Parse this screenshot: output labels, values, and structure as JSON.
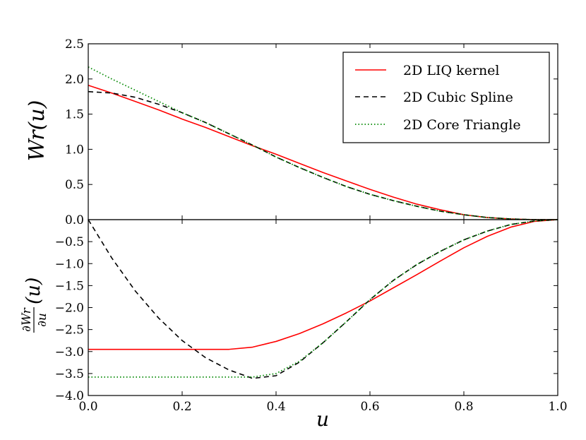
{
  "chart_data": [
    {
      "type": "line",
      "panel": "top",
      "title": "",
      "xlabel": "",
      "ylabel": "W_r(u)",
      "ylabel_display": "Wr(u)",
      "xlim": [
        0.0,
        1.0
      ],
      "ylim": [
        0.0,
        2.5
      ],
      "yticks": [
        "0.0",
        "0.5",
        "1.0",
        "1.5",
        "2.0",
        "2.5"
      ],
      "x": [
        0.0,
        0.05,
        0.1,
        0.15,
        0.2,
        0.25,
        0.3,
        0.35,
        0.4,
        0.45,
        0.5,
        0.55,
        0.6,
        0.65,
        0.7,
        0.75,
        0.8,
        0.85,
        0.9,
        0.95,
        1.0
      ],
      "series": [
        {
          "name": "2D LIQ kernel",
          "color": "#ff0000",
          "style": "solid",
          "values": [
            1.91,
            1.8,
            1.68,
            1.56,
            1.43,
            1.31,
            1.18,
            1.05,
            0.93,
            0.8,
            0.67,
            0.55,
            0.43,
            0.32,
            0.22,
            0.14,
            0.07,
            0.03,
            0.01,
            0.0,
            0.0
          ]
        },
        {
          "name": "2D Cubic Spline",
          "color": "#000000",
          "style": "dashed",
          "values": [
            1.82,
            1.8,
            1.74,
            1.64,
            1.52,
            1.38,
            1.22,
            1.06,
            0.89,
            0.74,
            0.6,
            0.47,
            0.36,
            0.27,
            0.19,
            0.12,
            0.07,
            0.03,
            0.01,
            0.0,
            0.0
          ]
        },
        {
          "name": "2D Core Triangle",
          "color": "#008800",
          "style": "dotted",
          "values": [
            2.17,
            2.0,
            1.84,
            1.68,
            1.52,
            1.38,
            1.22,
            1.06,
            0.89,
            0.74,
            0.6,
            0.47,
            0.36,
            0.27,
            0.19,
            0.12,
            0.07,
            0.03,
            0.01,
            0.0,
            0.0
          ]
        }
      ],
      "legend": {
        "position": "top-right",
        "entries": [
          "2D LIQ kernel",
          "2D Cubic Spline",
          "2D Core Triangle"
        ]
      }
    },
    {
      "type": "line",
      "panel": "bottom",
      "title": "",
      "xlabel": "u",
      "ylabel": "∂W_r/∂u (u)",
      "ylabel_frac_top": "∂Wr",
      "ylabel_frac_bottom": "∂u",
      "ylabel_suffix": "(u)",
      "xlim": [
        0.0,
        1.0
      ],
      "ylim": [
        -4.0,
        0.0
      ],
      "xticks": [
        "0.0",
        "0.2",
        "0.4",
        "0.6",
        "0.8",
        "1.0"
      ],
      "yticks": [
        "−4.0",
        "−3.5",
        "−3.0",
        "−2.5",
        "−2.0",
        "−1.5",
        "−1.0",
        "−0.5"
      ],
      "x": [
        0.0,
        0.05,
        0.1,
        0.15,
        0.2,
        0.25,
        0.3,
        0.35,
        0.4,
        0.45,
        0.5,
        0.55,
        0.6,
        0.65,
        0.7,
        0.75,
        0.8,
        0.85,
        0.9,
        0.95,
        1.0
      ],
      "series": [
        {
          "name": "2D LIQ kernel",
          "color": "#ff0000",
          "style": "solid",
          "values": [
            -2.95,
            -2.95,
            -2.95,
            -2.95,
            -2.95,
            -2.95,
            -2.95,
            -2.9,
            -2.77,
            -2.59,
            -2.37,
            -2.12,
            -1.85,
            -1.55,
            -1.25,
            -0.94,
            -0.64,
            -0.38,
            -0.17,
            -0.04,
            0.0
          ]
        },
        {
          "name": "2D Cubic Spline",
          "color": "#000000",
          "style": "dashed",
          "values": [
            0.0,
            -0.87,
            -1.62,
            -2.24,
            -2.75,
            -3.14,
            -3.42,
            -3.61,
            -3.55,
            -3.24,
            -2.8,
            -2.32,
            -1.82,
            -1.38,
            -1.02,
            -0.72,
            -0.46,
            -0.26,
            -0.11,
            -0.03,
            0.0
          ]
        },
        {
          "name": "2D Core Triangle",
          "color": "#008800",
          "style": "dotted",
          "values": [
            -3.58,
            -3.58,
            -3.58,
            -3.58,
            -3.58,
            -3.58,
            -3.58,
            -3.58,
            -3.5,
            -3.22,
            -2.8,
            -2.32,
            -1.82,
            -1.38,
            -1.02,
            -0.72,
            -0.46,
            -0.26,
            -0.11,
            -0.03,
            0.0
          ]
        }
      ]
    }
  ]
}
